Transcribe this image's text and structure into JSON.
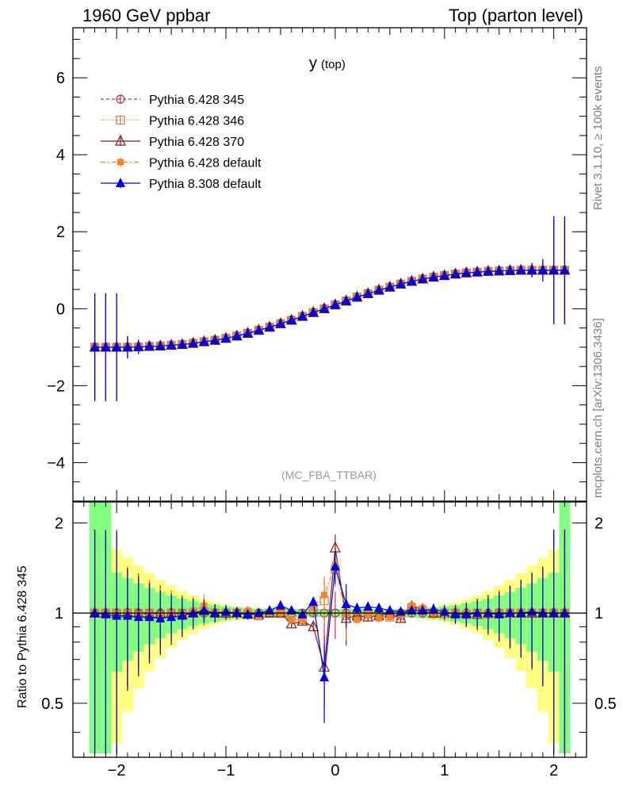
{
  "header": {
    "left": "1960 GeV ppbar",
    "right": "Top (parton level)"
  },
  "side_labels": {
    "rivet": "Rivet 3.1.10, ≥ 100k events",
    "mcplots": "mcplots.cern.ch [arXiv:1306.3436]"
  },
  "chart_data": {
    "type": "line",
    "title": "y",
    "title_sub": "(top)",
    "watermark": "(MC_FBA_TTBAR)",
    "xlim": [
      -2.4,
      2.3
    ],
    "xticks": [
      -2,
      -1,
      0,
      1,
      2
    ],
    "xtick_labels": [
      "−2",
      "−1",
      "0",
      "1",
      "2"
    ],
    "main": {
      "ylim": [
        -5.0,
        7.3
      ],
      "yticks": [
        -4,
        -2,
        0,
        2,
        4,
        6
      ],
      "ytick_labels": [
        "−4",
        "−2",
        "0",
        "2",
        "4",
        "6"
      ]
    },
    "ratio": {
      "ylabel": "Ratio to Pythia 6.428 345",
      "ylim": [
        0.33,
        2.35
      ],
      "yticks": [
        0.5,
        1,
        2
      ],
      "ytick_labels": [
        "0.5",
        "1",
        "2"
      ]
    },
    "legend": {
      "placement": "top-left",
      "entries": [
        "Pythia 6.428 345",
        "Pythia 6.428 346",
        "Pythia 6.428 370",
        "Pythia 6.428 default",
        "Pythia 8.308 default"
      ]
    },
    "x": [
      -2.2,
      -2.1,
      -2.0,
      -1.9,
      -1.8,
      -1.7,
      -1.6,
      -1.5,
      -1.4,
      -1.3,
      -1.2,
      -1.1,
      -1.0,
      -0.9,
      -0.8,
      -0.7,
      -0.6,
      -0.5,
      -0.4,
      -0.3,
      -0.2,
      -0.1,
      0.0,
      0.1,
      0.2,
      0.3,
      0.4,
      0.5,
      0.6,
      0.7,
      0.8,
      0.9,
      1.0,
      1.1,
      1.2,
      1.3,
      1.4,
      1.5,
      1.6,
      1.7,
      1.8,
      1.9,
      2.0,
      2.1
    ],
    "reference_y": [
      -1.0,
      -1.0,
      -1.0,
      -1.0,
      -0.99,
      -0.98,
      -0.97,
      -0.95,
      -0.93,
      -0.9,
      -0.86,
      -0.82,
      -0.77,
      -0.71,
      -0.64,
      -0.56,
      -0.48,
      -0.39,
      -0.3,
      -0.2,
      -0.1,
      0.0,
      0.1,
      0.2,
      0.3,
      0.39,
      0.48,
      0.56,
      0.64,
      0.71,
      0.77,
      0.82,
      0.86,
      0.9,
      0.93,
      0.95,
      0.97,
      0.98,
      0.99,
      1.0,
      1.0,
      1.0,
      1.0,
      1.0
    ],
    "series": [
      {
        "name": "Pythia 6.428 345",
        "color": "#c8324b",
        "dash": "4,3",
        "marker": "circle-open",
        "ratio": [
          1.0,
          1.0,
          1.0,
          1.0,
          1.0,
          1.0,
          1.0,
          1.0,
          1.0,
          1.0,
          1.0,
          1.0,
          1.0,
          1.0,
          1.0,
          1.0,
          1.0,
          1.0,
          1.0,
          1.0,
          1.0,
          1.0,
          1.0,
          1.0,
          1.0,
          1.0,
          1.0,
          1.0,
          1.0,
          1.0,
          1.0,
          1.0,
          1.0,
          1.0,
          1.0,
          1.0,
          1.0,
          1.0,
          1.0,
          1.0,
          1.0,
          1.0,
          1.0,
          1.0
        ]
      },
      {
        "name": "Pythia 6.428 346",
        "color": "#b8864b",
        "dash": "1,2",
        "marker": "square-open",
        "ratio": [
          1.0,
          1.0,
          1.0,
          1.0,
          1.0,
          1.0,
          0.99,
          1.0,
          1.0,
          1.0,
          1.01,
          1.0,
          1.0,
          1.0,
          0.99,
          0.98,
          1.0,
          1.0,
          0.97,
          0.95,
          1.02,
          1.1,
          1.4,
          0.98,
          0.97,
          0.99,
          0.98,
          0.97,
          0.98,
          1.04,
          1.02,
          1.0,
          1.0,
          1.0,
          0.99,
          1.0,
          0.99,
          1.0,
          1.0,
          1.0,
          1.0,
          1.0,
          1.0,
          1.0
        ]
      },
      {
        "name": "Pythia 6.428 370",
        "color": "#8b1a1a",
        "dash": "",
        "marker": "triangle-open",
        "ratio": [
          1.0,
          1.0,
          1.0,
          1.0,
          1.0,
          0.99,
          1.0,
          1.0,
          0.99,
          1.0,
          1.02,
          1.0,
          1.0,
          1.0,
          0.99,
          0.99,
          1.0,
          1.0,
          0.92,
          0.94,
          0.9,
          0.66,
          1.65,
          0.96,
          0.98,
          0.97,
          0.98,
          1.0,
          0.96,
          1.05,
          1.03,
          1.0,
          1.0,
          1.0,
          1.0,
          0.99,
          1.0,
          1.0,
          1.0,
          1.0,
          1.0,
          1.0,
          1.0,
          1.0
        ]
      },
      {
        "name": "Pythia 6.428 default",
        "color": "#ff7f2a",
        "dash": "6,3,2,3",
        "marker": "square-filled",
        "ratio": [
          1.0,
          1.0,
          1.0,
          1.0,
          0.99,
          1.0,
          0.98,
          1.0,
          0.98,
          1.02,
          1.06,
          1.0,
          1.0,
          0.99,
          1.02,
          0.98,
          1.01,
          1.0,
          0.95,
          0.95,
          1.05,
          1.15,
          1.45,
          0.99,
          0.95,
          0.99,
          0.96,
          0.97,
          0.99,
          1.06,
          1.04,
          1.0,
          0.99,
          1.0,
          1.0,
          0.99,
          1.0,
          1.0,
          0.99,
          1.0,
          1.0,
          1.0,
          1.0,
          1.0
        ]
      },
      {
        "name": "Pythia 8.308 default",
        "color": "#0000dd",
        "dash": "",
        "marker": "triangle-filled",
        "ratio": [
          1.0,
          0.99,
          0.98,
          0.98,
          0.97,
          0.97,
          0.96,
          0.97,
          0.98,
          1.0,
          1.02,
          1.0,
          1.01,
          1.0,
          0.99,
          1.0,
          1.02,
          1.06,
          1.02,
          0.99,
          1.09,
          0.61,
          1.43,
          1.07,
          1.04,
          1.05,
          1.04,
          1.02,
          1.01,
          1.02,
          1.02,
          1.03,
          1.01,
          0.99,
          0.99,
          1.0,
          1.0,
          0.99,
          1.0,
          1.0,
          1.01,
          1.0,
          1.0,
          1.0
        ]
      }
    ]
  }
}
